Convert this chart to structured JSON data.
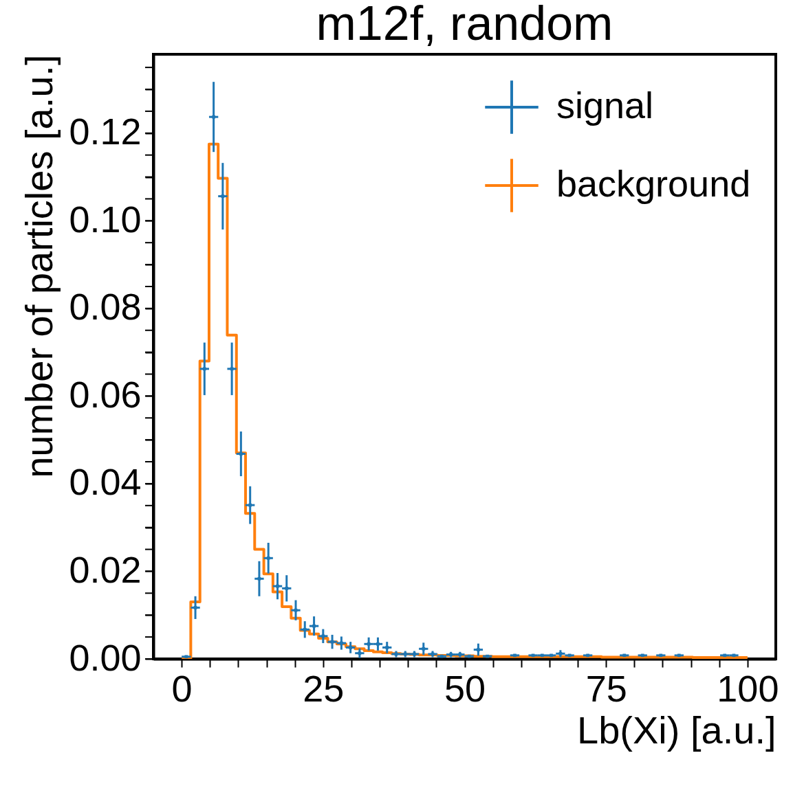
{
  "chart_data": {
    "type": "step",
    "title": "m12f, random",
    "xlabel": "Lb(Xi) [a.u.]",
    "ylabel": "number of particles [a.u.]",
    "series": [
      {
        "name": "signal",
        "type": "scatter",
        "color": "#1f77b4",
        "marker": "square",
        "x": [
          0.81,
          2.42,
          4.03,
          5.65,
          7.26,
          8.87,
          10.48,
          12.1,
          13.71,
          15.32,
          16.94,
          18.55,
          20.16,
          21.77,
          23.39,
          25,
          26.61,
          28.23,
          29.84,
          31.45,
          33.06,
          34.68,
          36.29,
          37.9,
          39.52,
          41.13,
          42.74,
          44.35,
          45.97,
          47.58,
          49.19,
          50.81,
          52.42,
          54.03,
          58.87,
          62.1,
          63.71,
          65.32,
          66.94,
          68.55,
          71.77,
          78.23,
          81.45,
          84.68,
          87.9,
          95.97,
          97.58
        ],
        "values": [
          0.0005,
          0.0117,
          0.0662,
          0.1237,
          0.1056,
          0.0662,
          0.0468,
          0.0351,
          0.0183,
          0.023,
          0.0166,
          0.0161,
          0.0111,
          0.0067,
          0.0075,
          0.0052,
          0.0039,
          0.0036,
          0.0026,
          0.0013,
          0.0034,
          0.0034,
          0.0026,
          0.0011,
          0.0011,
          0.0011,
          0.0023,
          0.0011,
          0.0006,
          0.001,
          0.001,
          0.0006,
          0.0021,
          0.0006,
          0.0008,
          0.0008,
          0.0008,
          0.0008,
          0.0012,
          0.0008,
          0.0008,
          0.0008,
          0.0008,
          0.0008,
          0.0008,
          0.0008,
          0.0008
        ],
        "errors": [
          null,
          0.0026,
          0.006,
          0.008,
          0.0076,
          0.006,
          0.0051,
          0.0043,
          0.004,
          0.0035,
          0.003,
          0.003,
          0.0023,
          0.0019,
          0.0022,
          0.0016,
          0.0016,
          0.0015,
          0.0013,
          0.0011,
          0.0015,
          0.0015,
          0.0013,
          0.0007,
          0.0007,
          0.0007,
          0.0014,
          0.0007,
          null,
          0.0006,
          0.0006,
          null,
          0.0014,
          null,
          null,
          null,
          null,
          null,
          0.0008,
          null,
          null,
          null,
          null,
          null,
          null,
          null,
          null
        ],
        "xerrors": [
          0.81,
          0.81,
          0.81,
          0.81,
          0.81,
          0.81,
          0.81,
          0.81,
          0.81,
          0.81,
          0.81,
          0.81,
          0.81,
          0.81,
          0.81,
          0.81,
          0.81,
          0.81,
          0.81,
          0.81,
          0.81,
          0.81,
          0.81,
          0.81,
          0.81,
          0.81,
          0.81,
          0.81,
          0.81,
          0.81,
          0.81,
          0.81,
          0.81,
          0.81,
          0.81,
          0.81,
          0.81,
          0.81,
          0.81,
          0.81,
          0.81,
          0.81,
          0.81,
          0.81,
          0.81,
          0.81,
          0.81
        ]
      },
      {
        "name": "background",
        "color": "#ff7f0e",
        "x": [
          0,
          1.61,
          3.23,
          4.84,
          6.45,
          8.06,
          9.68,
          11.29,
          12.9,
          14.52,
          16.13,
          17.74,
          19.35,
          20.97,
          22.58,
          24.19,
          25.81,
          27.42,
          29.03,
          30.65,
          32.26,
          33.87,
          35.48,
          37.1,
          38.71,
          40.32,
          41.94,
          43.55,
          45.16,
          46.77,
          48.39,
          50,
          51.61,
          53.23,
          54.84,
          56.45,
          58.06,
          59.68,
          61.29,
          62.9,
          64.52,
          66.13,
          67.74,
          69.35,
          70.97,
          72.58,
          74.19,
          75.81,
          77.42,
          79.03,
          80.65,
          82.26,
          83.87,
          85.48,
          87.1,
          88.71,
          90.32,
          91.94,
          93.55,
          95.16,
          96.77,
          98.39,
          100
        ],
        "values": [
          0,
          0.013,
          0.068,
          0.1175,
          0.1097,
          0.0739,
          0.047,
          0.0332,
          0.025,
          0.0194,
          0.0153,
          0.0119,
          0.0093,
          0.0065,
          0.0057,
          0.0047,
          0.0039,
          0.0034,
          0.0028,
          0.0023,
          0.0019,
          0.0016,
          0.0014,
          0.0012,
          0.0011,
          0.001,
          0.0009,
          0.0009,
          0.0008,
          0.0008,
          0.0007,
          0.0007,
          0.0006,
          0.0006,
          0.0005,
          0.0005,
          0.0005,
          0.0005,
          0.0005,
          0.0005,
          0.0005,
          0.0005,
          0.0005,
          0.0005,
          0.0005,
          0.0005,
          0.0004,
          0.0004,
          0.0004,
          0.0004,
          0.0004,
          0.0004,
          0.0004,
          0.0004,
          0.0004,
          0.0004,
          0.0003,
          0.0003,
          0.0003,
          0.0003,
          0.0003,
          0.0003,
          0.0003
        ]
      }
    ],
    "xlim": [
      -5,
      105
    ],
    "ylim": [
      0,
      0.138
    ],
    "xticks": [
      0,
      {
        "value": 5,
        "label": null
      },
      {
        "value": 10,
        "label": null
      },
      {
        "value": 15,
        "label": null
      },
      {
        "value": 20,
        "label": null
      },
      25,
      {
        "value": 30,
        "label": null
      },
      {
        "value": 35,
        "label": null
      },
      {
        "value": 40,
        "label": null
      },
      {
        "value": 45,
        "label": null
      },
      50,
      {
        "value": 55,
        "label": null
      },
      {
        "value": 60,
        "label": null
      },
      {
        "value": 65,
        "label": null
      },
      {
        "value": 70,
        "label": null
      },
      75,
      {
        "value": 80,
        "label": null
      },
      {
        "value": 85,
        "label": null
      },
      {
        "value": 90,
        "label": null
      },
      {
        "value": 95,
        "label": null
      },
      100
    ],
    "yticks": [
      {
        "value": 0,
        "label": "0.00"
      },
      {
        "value": 0.005,
        "label": null
      },
      {
        "value": 0.01,
        "label": null
      },
      {
        "value": 0.015,
        "label": null
      },
      {
        "value": 0.02,
        "label": "0.02"
      },
      {
        "value": 0.025,
        "label": null
      },
      {
        "value": 0.03,
        "label": null
      },
      {
        "value": 0.035,
        "label": null
      },
      {
        "value": 0.04,
        "label": "0.04"
      },
      {
        "value": 0.045,
        "label": null
      },
      {
        "value": 0.05,
        "label": null
      },
      {
        "value": 0.055,
        "label": null
      },
      {
        "value": 0.06,
        "label": "0.06"
      },
      {
        "value": 0.065,
        "label": null
      },
      {
        "value": 0.07,
        "label": null
      },
      {
        "value": 0.075,
        "label": null
      },
      {
        "value": 0.08,
        "label": "0.08"
      },
      {
        "value": 0.085,
        "label": null
      },
      {
        "value": 0.09,
        "label": null
      },
      {
        "value": 0.095,
        "label": null
      },
      {
        "value": 0.1,
        "label": "0.10"
      },
      {
        "value": 0.105,
        "label": null
      },
      {
        "value": 0.11,
        "label": null
      },
      {
        "value": 0.115,
        "label": null
      },
      {
        "value": 0.12,
        "label": "0.12"
      },
      {
        "value": 0.125,
        "label": null
      },
      {
        "value": 0.13,
        "label": null
      },
      {
        "value": 0.135,
        "label": null
      }
    ],
    "grid": false,
    "legend": "top right"
  }
}
